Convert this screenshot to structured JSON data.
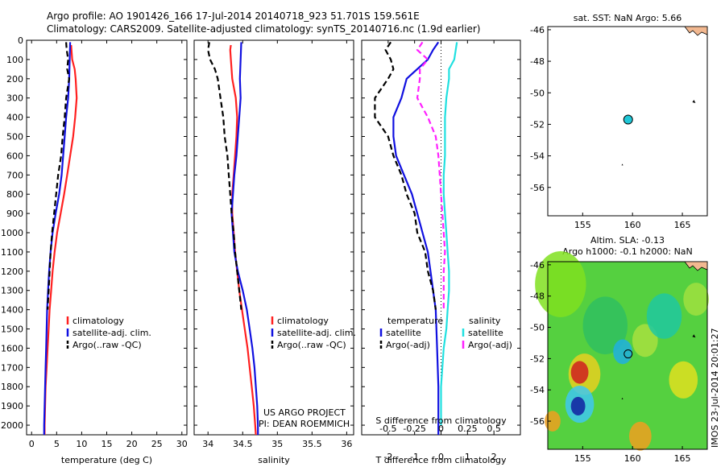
{
  "header": {
    "line1": "Argo profile: AO 1901426_166 17-Jul-2014 20140718_923 51.701S 159.561E",
    "line2": "Climatology: CARS2009. Satellite-adjusted climatology: synTS_20140716.nc (1.9d earlier)"
  },
  "colors": {
    "climatology": "#ff2020",
    "satellite": "#1010e0",
    "argo": "#000000",
    "sat_salinity": "#20e0e0",
    "argo_salinity": "#ff20ff"
  },
  "chart_data": [
    {
      "type": "line",
      "name": "temperature",
      "xlabel": "temperature (deg C)",
      "ylabel": "",
      "xlim": [
        -1,
        31
      ],
      "ylim": [
        2050,
        0
      ],
      "xticks": [
        0,
        5,
        10,
        15,
        20,
        25,
        30
      ],
      "yticks": [
        0,
        100,
        200,
        300,
        400,
        500,
        600,
        700,
        800,
        900,
        1000,
        1100,
        1200,
        1300,
        1400,
        1500,
        1600,
        1700,
        1800,
        1900,
        2000
      ],
      "ytick_labels": [
        "0",
        "100",
        "200",
        "300",
        "400",
        "500",
        "600",
        "700",
        "800",
        "900",
        "1000",
        "1100",
        "1200",
        "1300",
        "1400",
        "1500",
        "1600",
        "1700",
        "1800",
        "1900",
        "2000"
      ],
      "legend": {
        "placement": "lower-center",
        "items": [
          "climatology",
          "satellite-adj. clim.",
          "Argo(..raw -QC)"
        ]
      },
      "series": [
        {
          "name": "climatology",
          "style": "solid",
          "color": "#ff2020",
          "points": [
            [
              7.9,
              25
            ],
            [
              8.1,
              100
            ],
            [
              8.6,
              150
            ],
            [
              8.8,
              200
            ],
            [
              9.0,
              300
            ],
            [
              8.7,
              400
            ],
            [
              8.3,
              500
            ],
            [
              7.7,
              600
            ],
            [
              7.1,
              700
            ],
            [
              6.5,
              800
            ],
            [
              5.8,
              900
            ],
            [
              5.1,
              1000
            ],
            [
              4.6,
              1100
            ],
            [
              4.2,
              1200
            ],
            [
              3.9,
              1300
            ],
            [
              3.6,
              1400
            ],
            [
              3.4,
              1500
            ],
            [
              3.2,
              1600
            ],
            [
              3.0,
              1700
            ],
            [
              2.8,
              1800
            ],
            [
              2.7,
              1900
            ],
            [
              2.6,
              2000
            ],
            [
              2.6,
              2050
            ]
          ]
        },
        {
          "name": "satellite-adj. clim.",
          "style": "solid",
          "color": "#1010e0",
          "points": [
            [
              7.7,
              10
            ],
            [
              7.6,
              100
            ],
            [
              7.5,
              200
            ],
            [
              7.3,
              300
            ],
            [
              6.9,
              400
            ],
            [
              6.6,
              500
            ],
            [
              6.3,
              600
            ],
            [
              6.0,
              700
            ],
            [
              5.5,
              800
            ],
            [
              4.8,
              900
            ],
            [
              4.2,
              1000
            ],
            [
              3.8,
              1100
            ],
            [
              3.5,
              1200
            ],
            [
              3.3,
              1300
            ],
            [
              3.1,
              1400
            ],
            [
              3.0,
              1500
            ],
            [
              2.9,
              1600
            ],
            [
              2.8,
              1700
            ],
            [
              2.7,
              1800
            ],
            [
              2.6,
              1900
            ],
            [
              2.5,
              2000
            ],
            [
              2.5,
              2050
            ]
          ]
        },
        {
          "name": "Argo(..raw -QC)",
          "style": "dashed",
          "color": "#000000",
          "points": [
            [
              6.9,
              10
            ],
            [
              7.0,
              50
            ],
            [
              7.3,
              100
            ],
            [
              7.1,
              150
            ],
            [
              7.5,
              200
            ],
            [
              6.9,
              300
            ],
            [
              6.6,
              400
            ],
            [
              6.2,
              500
            ],
            [
              5.9,
              600
            ],
            [
              5.3,
              700
            ],
            [
              4.9,
              800
            ],
            [
              4.5,
              900
            ],
            [
              4.1,
              1000
            ],
            [
              3.8,
              1100
            ],
            [
              3.6,
              1200
            ],
            [
              3.4,
              1300
            ],
            [
              3.2,
              1400
            ]
          ]
        }
      ]
    },
    {
      "type": "line",
      "name": "salinity",
      "xlabel": "salinity",
      "ylabel": "",
      "xlim": [
        33.8,
        36.1
      ],
      "ylim": [
        2050,
        0
      ],
      "xticks": [
        34,
        34.5,
        35,
        35.5,
        36
      ],
      "xtick_labels": [
        "34",
        "34.5",
        "35",
        "35.5",
        "36"
      ],
      "legend": {
        "placement": "lower-center",
        "items": [
          "climatology",
          "satellite-adj. clim.",
          "Argo(..raw -QC)"
        ]
      },
      "annotation": [
        "US ARGO PROJECT",
        "PI: DEAN ROEMMICH"
      ],
      "series": [
        {
          "name": "climatology",
          "style": "solid",
          "color": "#ff2020",
          "points": [
            [
              34.33,
              25
            ],
            [
              34.32,
              50
            ],
            [
              34.33,
              100
            ],
            [
              34.35,
              200
            ],
            [
              34.4,
              300
            ],
            [
              34.42,
              400
            ],
            [
              34.41,
              500
            ],
            [
              34.39,
              600
            ],
            [
              34.37,
              700
            ],
            [
              34.35,
              800
            ],
            [
              34.35,
              900
            ],
            [
              34.37,
              1000
            ],
            [
              34.39,
              1100
            ],
            [
              34.42,
              1200
            ],
            [
              34.45,
              1300
            ],
            [
              34.49,
              1400
            ],
            [
              34.53,
              1500
            ],
            [
              34.57,
              1600
            ],
            [
              34.6,
              1700
            ],
            [
              34.63,
              1800
            ],
            [
              34.66,
              1900
            ],
            [
              34.68,
              2000
            ],
            [
              34.69,
              2050
            ]
          ]
        },
        {
          "name": "satellite-adj. clim.",
          "style": "solid",
          "color": "#1010e0",
          "points": [
            [
              34.48,
              10
            ],
            [
              34.47,
              100
            ],
            [
              34.46,
              200
            ],
            [
              34.47,
              300
            ],
            [
              34.45,
              400
            ],
            [
              34.43,
              500
            ],
            [
              34.41,
              600
            ],
            [
              34.38,
              700
            ],
            [
              34.36,
              800
            ],
            [
              34.34,
              900
            ],
            [
              34.36,
              1000
            ],
            [
              34.38,
              1100
            ],
            [
              34.43,
              1200
            ],
            [
              34.5,
              1300
            ],
            [
              34.56,
              1400
            ],
            [
              34.6,
              1500
            ],
            [
              34.64,
              1600
            ],
            [
              34.67,
              1700
            ],
            [
              34.69,
              1800
            ],
            [
              34.71,
              1900
            ],
            [
              34.72,
              2000
            ],
            [
              34.72,
              2050
            ]
          ]
        },
        {
          "name": "Argo(..raw -QC)",
          "style": "dashed",
          "color": "#000000",
          "points": [
            [
              34.02,
              10
            ],
            [
              34.0,
              50
            ],
            [
              34.03,
              100
            ],
            [
              34.1,
              150
            ],
            [
              34.14,
              200
            ],
            [
              34.18,
              300
            ],
            [
              34.22,
              400
            ],
            [
              34.24,
              500
            ],
            [
              34.28,
              600
            ],
            [
              34.3,
              700
            ],
            [
              34.32,
              800
            ],
            [
              34.34,
              900
            ],
            [
              34.37,
              1000
            ],
            [
              34.39,
              1100
            ],
            [
              34.42,
              1200
            ],
            [
              34.45,
              1300
            ],
            [
              34.48,
              1400
            ]
          ]
        }
      ]
    },
    {
      "type": "line",
      "name": "difference",
      "xlabel": "T difference from climatology",
      "xlabel2": "S difference from climatology",
      "xlim": [
        -3,
        3
      ],
      "ylim": [
        2050,
        0
      ],
      "xticks": [
        -2,
        -1,
        0,
        1,
        2
      ],
      "xtick_labels": [
        "-2",
        "-1",
        "0",
        "1",
        "2"
      ],
      "xticks2": [
        "-0.5",
        "-0.25",
        "0",
        "0.25",
        "0.5"
      ],
      "legend": {
        "placement": "lower-center",
        "groups": [
          {
            "title": "temperature",
            "items": [
              "satellite",
              "Argo(-adj)"
            ]
          },
          {
            "title": "salinity",
            "items": [
              "satellite",
              "Argo(-adj)"
            ]
          }
        ]
      },
      "series": [
        {
          "name": "temperature satellite",
          "style": "solid",
          "color": "#1010e0",
          "points": [
            [
              -0.1,
              10
            ],
            [
              -0.3,
              50
            ],
            [
              -0.5,
              100
            ],
            [
              -1.3,
              200
            ],
            [
              -1.5,
              300
            ],
            [
              -1.8,
              400
            ],
            [
              -1.8,
              500
            ],
            [
              -1.7,
              600
            ],
            [
              -1.4,
              700
            ],
            [
              -1.1,
              800
            ],
            [
              -0.9,
              900
            ],
            [
              -0.7,
              1000
            ],
            [
              -0.5,
              1100
            ],
            [
              -0.4,
              1200
            ],
            [
              -0.3,
              1300
            ],
            [
              -0.2,
              1400
            ],
            [
              -0.15,
              1600
            ],
            [
              -0.1,
              1800
            ],
            [
              -0.1,
              2000
            ],
            [
              -0.1,
              2050
            ]
          ]
        },
        {
          "name": "temperature Argo(-adj)",
          "style": "dashed",
          "color": "#000000",
          "points": [
            [
              -1.9,
              10
            ],
            [
              -2.1,
              50
            ],
            [
              -1.9,
              100
            ],
            [
              -1.8,
              150
            ],
            [
              -2.0,
              200
            ],
            [
              -2.5,
              300
            ],
            [
              -2.5,
              400
            ],
            [
              -2.0,
              500
            ],
            [
              -1.8,
              600
            ],
            [
              -1.5,
              700
            ],
            [
              -1.3,
              800
            ],
            [
              -1.0,
              900
            ],
            [
              -0.9,
              1000
            ],
            [
              -0.6,
              1100
            ],
            [
              -0.5,
              1200
            ],
            [
              -0.3,
              1300
            ],
            [
              -0.2,
              1400
            ]
          ]
        },
        {
          "name": "salinity satellite",
          "style": "solid",
          "color": "#20e0e0",
          "points": [
            [
              0.6,
              10
            ],
            [
              0.5,
              100
            ],
            [
              0.3,
              150
            ],
            [
              0.3,
              200
            ],
            [
              0.2,
              300
            ],
            [
              0.15,
              400
            ],
            [
              0.15,
              500
            ],
            [
              0.15,
              600
            ],
            [
              0.1,
              700
            ],
            [
              0.1,
              800
            ],
            [
              0.15,
              900
            ],
            [
              0.2,
              1000
            ],
            [
              0.25,
              1100
            ],
            [
              0.3,
              1200
            ],
            [
              0.3,
              1300
            ],
            [
              0.25,
              1400
            ],
            [
              0.2,
              1500
            ],
            [
              0.1,
              1600
            ],
            [
              0.0,
              1800
            ],
            [
              0.0,
              2000
            ]
          ]
        },
        {
          "name": "salinity Argo(-adj)",
          "style": "dashed",
          "color": "#ff20ff",
          "points": [
            [
              -0.7,
              10
            ],
            [
              -0.9,
              50
            ],
            [
              -0.5,
              100
            ],
            [
              -0.8,
              150
            ],
            [
              -0.8,
              200
            ],
            [
              -0.9,
              300
            ],
            [
              -0.5,
              400
            ],
            [
              -0.2,
              500
            ],
            [
              -0.1,
              600
            ],
            [
              -0.05,
              700
            ],
            [
              0.0,
              800
            ],
            [
              0.05,
              900
            ],
            [
              0.1,
              1000
            ],
            [
              0.15,
              1100
            ],
            [
              0.1,
              1200
            ],
            [
              0.1,
              1300
            ],
            [
              0.1,
              1400
            ]
          ]
        }
      ]
    },
    {
      "type": "scatter",
      "name": "sst-map",
      "title": "sat. SST: NaN Argo: 5.66",
      "xlim": [
        151.5,
        167.5
      ],
      "ylim": [
        -57.8,
        -45.8
      ],
      "xticks": [
        155,
        160,
        165
      ],
      "yticks": [
        -46,
        -48,
        -50,
        -52,
        -54,
        -56
      ],
      "points": [
        {
          "lon": 159.56,
          "lat": -51.7,
          "label": "Argo"
        }
      ]
    },
    {
      "type": "heatmap",
      "name": "sla-map",
      "title_lines": [
        "Altim. SLA: -0.13",
        "Argo h1000: -0.1 h2000: NaN"
      ],
      "xlim": [
        151.5,
        167.5
      ],
      "ylim": [
        -57.8,
        -45.8
      ],
      "xticks": [
        155,
        160,
        165
      ],
      "yticks": [
        -46,
        -48,
        -50,
        -52,
        -54,
        -56
      ],
      "points": [
        {
          "lon": 159.56,
          "lat": -51.7,
          "label": "Argo"
        }
      ],
      "side_text": "IMOS 23-Jul-2014 20:01:27"
    }
  ]
}
